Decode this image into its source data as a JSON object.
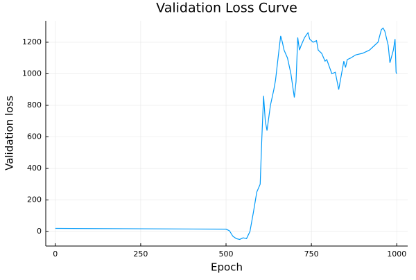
{
  "chart_data": {
    "type": "line",
    "title": "Validation Loss Curve",
    "x_label": "Epoch",
    "y_label": "Validation loss",
    "x": [
      0,
      100,
      200,
      300,
      400,
      500,
      510,
      520,
      530,
      540,
      550,
      560,
      570,
      580,
      590,
      600,
      605,
      610,
      615,
      620,
      625,
      630,
      640,
      645,
      655,
      660,
      665,
      670,
      680,
      690,
      700,
      705,
      710,
      715,
      720,
      730,
      740,
      745,
      755,
      765,
      770,
      780,
      790,
      795,
      800,
      810,
      820,
      830,
      835,
      845,
      850,
      855,
      865,
      880,
      900,
      920,
      935,
      945,
      955,
      960,
      965,
      975,
      980,
      990,
      995,
      998,
      1000
    ],
    "series": [
      {
        "name": "Validation loss",
        "color": "#009af9",
        "values": [
          20,
          19,
          18,
          17,
          16,
          15,
          5,
          -30,
          -45,
          -50,
          -40,
          -45,
          0,
          120,
          250,
          300,
          600,
          860,
          700,
          640,
          720,
          800,
          900,
          960,
          1150,
          1240,
          1200,
          1150,
          1100,
          1000,
          850,
          950,
          1230,
          1150,
          1180,
          1230,
          1260,
          1220,
          1200,
          1210,
          1150,
          1130,
          1080,
          1090,
          1060,
          1000,
          1010,
          900,
          960,
          1080,
          1040,
          1090,
          1100,
          1120,
          1130,
          1150,
          1180,
          1200,
          1280,
          1290,
          1270,
          1180,
          1070,
          1150,
          1220,
          1010,
          1000
        ]
      }
    ],
    "xlim": [
      -28,
      1032
    ],
    "ylim": [
      -92,
      1336
    ],
    "xticks": [
      0,
      250,
      500,
      750,
      1000
    ],
    "yticks": [
      0,
      200,
      400,
      600,
      800,
      1000,
      1200
    ],
    "grid": true
  }
}
